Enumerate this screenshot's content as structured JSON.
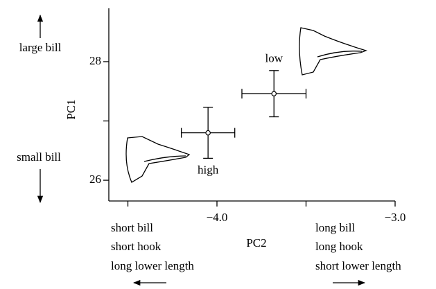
{
  "chart_data": {
    "type": "scatter",
    "x_label": "PC2",
    "y_label": "PC1",
    "x": [
      -4.05,
      -3.68
    ],
    "values": [
      26.8,
      27.46
    ],
    "xerr": [
      0.15,
      0.18
    ],
    "yerr": [
      0.43,
      0.39
    ],
    "point_labels": [
      "high",
      "low"
    ],
    "xlim": [
      -4.607,
      -3.0
    ],
    "ylim": [
      25.65,
      28.9
    ],
    "xticks": [
      {
        "value": -4.0,
        "label": "−4.0"
      },
      {
        "value": -3.0,
        "label": "−3.0"
      }
    ],
    "xminorticks": [
      -4.5,
      -3.5
    ],
    "yticks": [
      26,
      28
    ],
    "yminorticks": [
      27
    ],
    "annotations": {
      "y_top": "large bill",
      "y_bottom": "small bill",
      "x_left": [
        "short bill",
        "short hook",
        "long lower length"
      ],
      "x_right": [
        "long bill",
        "long hook",
        "short lower length"
      ]
    }
  }
}
